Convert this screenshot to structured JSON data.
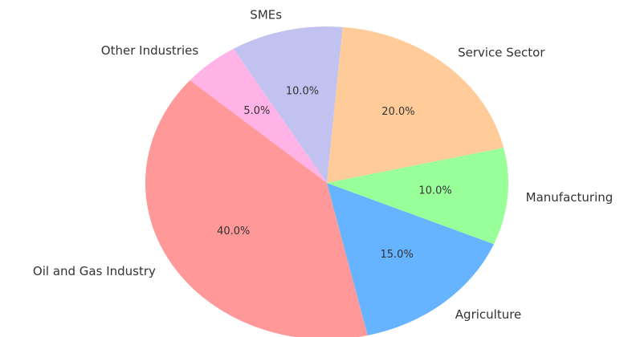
{
  "chart_data": {
    "type": "pie",
    "categories": [
      "Service Sector",
      "SMEs",
      "Other Industries",
      "Oil and Gas Industry",
      "Agriculture",
      "Manufacturing"
    ],
    "values": [
      20,
      10,
      5,
      40,
      15,
      10
    ],
    "value_labels": [
      "20.0%",
      "10.0%",
      "5.0%",
      "40.0%",
      "15.0%",
      "10.0%"
    ],
    "colors": [
      "#ffcc99",
      "#c2c2f0",
      "#ffb3e6",
      "#ff9999",
      "#66b3ff",
      "#99ff99"
    ]
  }
}
